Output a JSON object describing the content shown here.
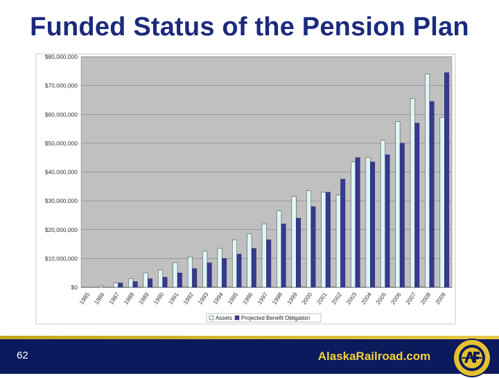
{
  "slide": {
    "title": "Funded Status of the Pension Plan",
    "page_number": "62",
    "website": "AlaskaRailroad.com"
  },
  "colors": {
    "title": "#1c2a7c",
    "plot_bg": "#c0c0c0",
    "assets": "#dff6f8",
    "pbo": "#363a8f",
    "footer_bg": "#0b1a5c",
    "footer_text": "#f3d33a"
  },
  "chart_data": {
    "type": "bar",
    "title": "",
    "xlabel": "",
    "ylabel": "",
    "ylim": [
      0,
      80000000
    ],
    "y_ticks": [
      "$0",
      "$10,000,000",
      "$20,000,000",
      "$30,000,000",
      "$40,000,000",
      "$50,000,000",
      "$60,000,000",
      "$70,000,000",
      "$80,000,000"
    ],
    "grid": true,
    "legend": "bottom",
    "categories": [
      "1985",
      "1986",
      "1987",
      "1988",
      "1989",
      "1990",
      "1991",
      "1992",
      "1993",
      "1994",
      "1995",
      "1996",
      "1997",
      "1998",
      "1999",
      "2000",
      "2001",
      "2002",
      "2003",
      "2004",
      "2005",
      "2006",
      "2007",
      "2008",
      "2009"
    ],
    "series": [
      {
        "name": "Assets",
        "color": "#dff6f8",
        "values": [
          0,
          500000,
          1500000,
          3000000,
          5000000,
          6000000,
          8500000,
          10500000,
          12500000,
          13500000,
          16500000,
          18500000,
          22000000,
          26500000,
          31500000,
          33500000,
          33000000,
          32000000,
          43500000,
          45000000,
          51000000,
          57500000,
          65500000,
          74000000,
          59000000
        ]
      },
      {
        "name": "Projected Benefit Obligation",
        "color": "#363a8f",
        "values": [
          0,
          0,
          1500000,
          2000000,
          3000000,
          3500000,
          5000000,
          6500000,
          8500000,
          10000000,
          11500000,
          13500000,
          16500000,
          22000000,
          24000000,
          28000000,
          33000000,
          37500000,
          45000000,
          43500000,
          46000000,
          50000000,
          57000000,
          64500000,
          74500000
        ]
      }
    ]
  },
  "legend_items": [
    "Assets",
    "Projected Benefit Obligation"
  ]
}
